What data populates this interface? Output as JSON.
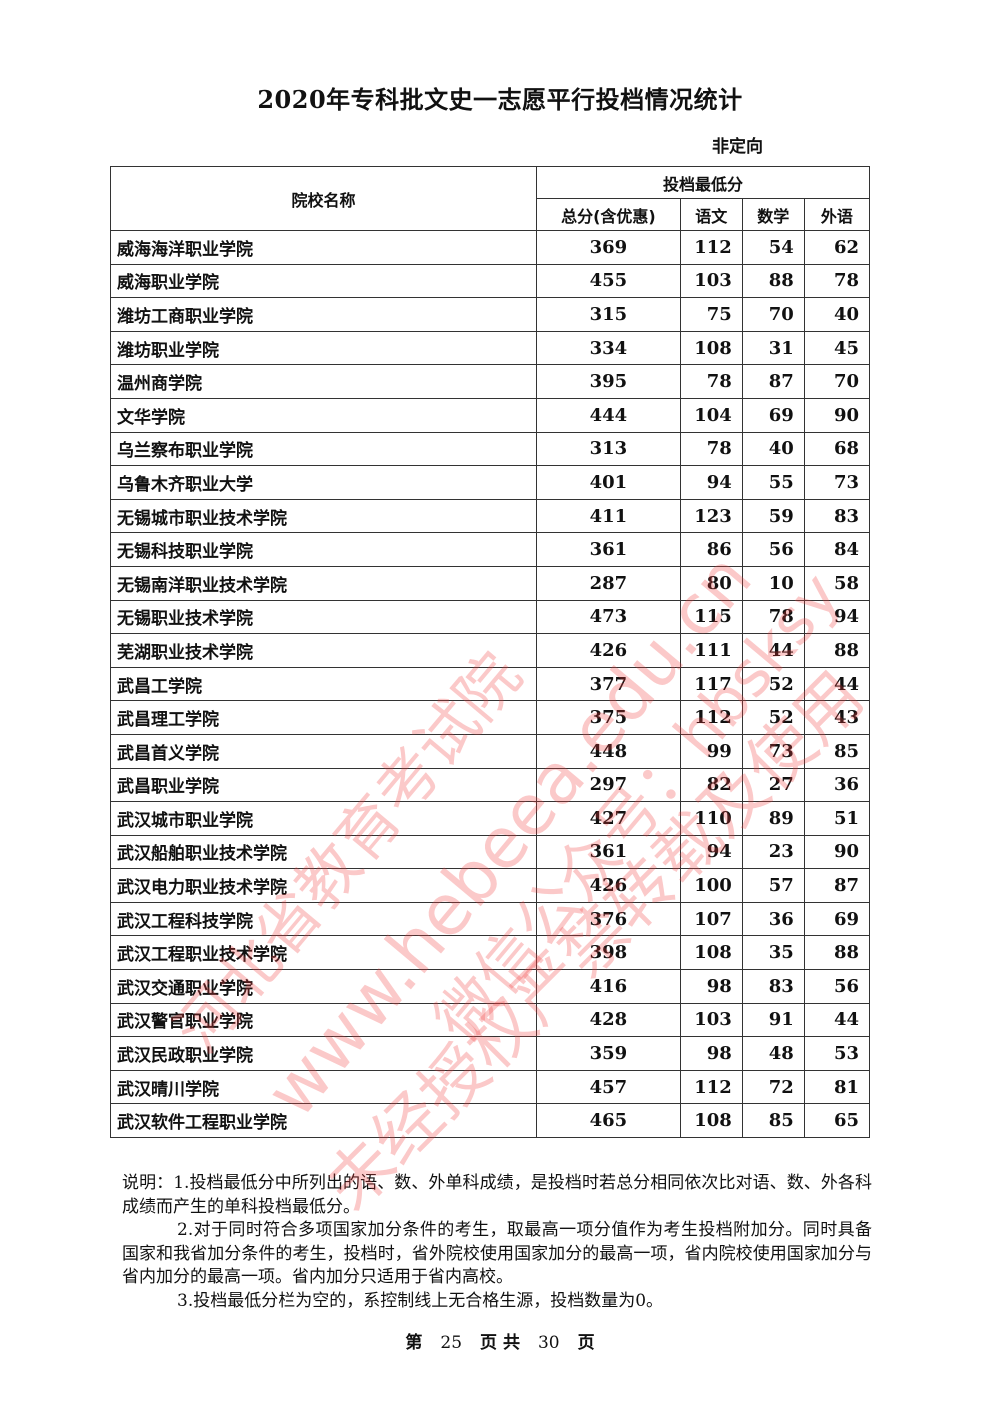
{
  "title": "2020年专科批文史一志愿平行投档情况统计",
  "subtitle": "非定向",
  "table": {
    "header_name": "院校名称",
    "header_group": "投档最低分",
    "columns": [
      "总分(含优惠)",
      "语文",
      "数学",
      "外语"
    ],
    "rows": [
      [
        "威海海洋职业学院",
        "369",
        "112",
        "54",
        "62"
      ],
      [
        "威海职业学院",
        "455",
        "103",
        "88",
        "78"
      ],
      [
        "潍坊工商职业学院",
        "315",
        "75",
        "70",
        "40"
      ],
      [
        "潍坊职业学院",
        "334",
        "108",
        "31",
        "45"
      ],
      [
        "温州商学院",
        "395",
        "78",
        "87",
        "70"
      ],
      [
        "文华学院",
        "444",
        "104",
        "69",
        "90"
      ],
      [
        "乌兰察布职业学院",
        "313",
        "78",
        "40",
        "68"
      ],
      [
        "乌鲁木齐职业大学",
        "401",
        "94",
        "55",
        "73"
      ],
      [
        "无锡城市职业技术学院",
        "411",
        "123",
        "59",
        "83"
      ],
      [
        "无锡科技职业学院",
        "361",
        "86",
        "56",
        "84"
      ],
      [
        "无锡南洋职业技术学院",
        "287",
        "80",
        "10",
        "58"
      ],
      [
        "无锡职业技术学院",
        "473",
        "115",
        "78",
        "94"
      ],
      [
        "芜湖职业技术学院",
        "426",
        "111",
        "44",
        "88"
      ],
      [
        "武昌工学院",
        "377",
        "117",
        "52",
        "44"
      ],
      [
        "武昌理工学院",
        "375",
        "112",
        "52",
        "43"
      ],
      [
        "武昌首义学院",
        "448",
        "99",
        "73",
        "85"
      ],
      [
        "武昌职业学院",
        "297",
        "82",
        "27",
        "36"
      ],
      [
        "武汉城市职业学院",
        "427",
        "110",
        "89",
        "51"
      ],
      [
        "武汉船舶职业技术学院",
        "361",
        "94",
        "23",
        "90"
      ],
      [
        "武汉电力职业技术学院",
        "426",
        "100",
        "57",
        "87"
      ],
      [
        "武汉工程科技学院",
        "376",
        "107",
        "36",
        "69"
      ],
      [
        "武汉工程职业技术学院",
        "398",
        "108",
        "35",
        "88"
      ],
      [
        "武汉交通职业学院",
        "416",
        "98",
        "83",
        "56"
      ],
      [
        "武汉警官职业学院",
        "428",
        "103",
        "91",
        "44"
      ],
      [
        "武汉民政职业学院",
        "359",
        "98",
        "48",
        "53"
      ],
      [
        "武汉晴川学院",
        "457",
        "112",
        "72",
        "81"
      ],
      [
        "武汉软件工程职业学院",
        "465",
        "108",
        "85",
        "65"
      ]
    ]
  },
  "notes": [
    "说明：1.投档最低分中所列出的语、数、外单科成绩，是投档时若总分相同依次比对语、数、外各科成绩而产生的单科投档最低分。",
    "2.对于同时符合多项国家加分条件的考生，取最高一项分值作为考生投档附加分。同时具备国家和我省加分条件的考生，投档时，省外院校使用国家加分的最高一项，省内院校使用国家加分与省内加分的最高一项。省内加分只适用于省内高校。",
    "3.投档最低分栏为空的，系控制线上无合格生源，投档数量为0。"
  ],
  "footer": {
    "prefix": "第",
    "page": "25",
    "mid": "页 共",
    "total": "30",
    "suffix": "页"
  },
  "watermarks": [
    "河北省教育考试院",
    "www.hebeea.edu.cn",
    "微信公众号：hbsksy",
    "未经授权严禁转载及使用"
  ],
  "watermark_color": "#f03c3c"
}
